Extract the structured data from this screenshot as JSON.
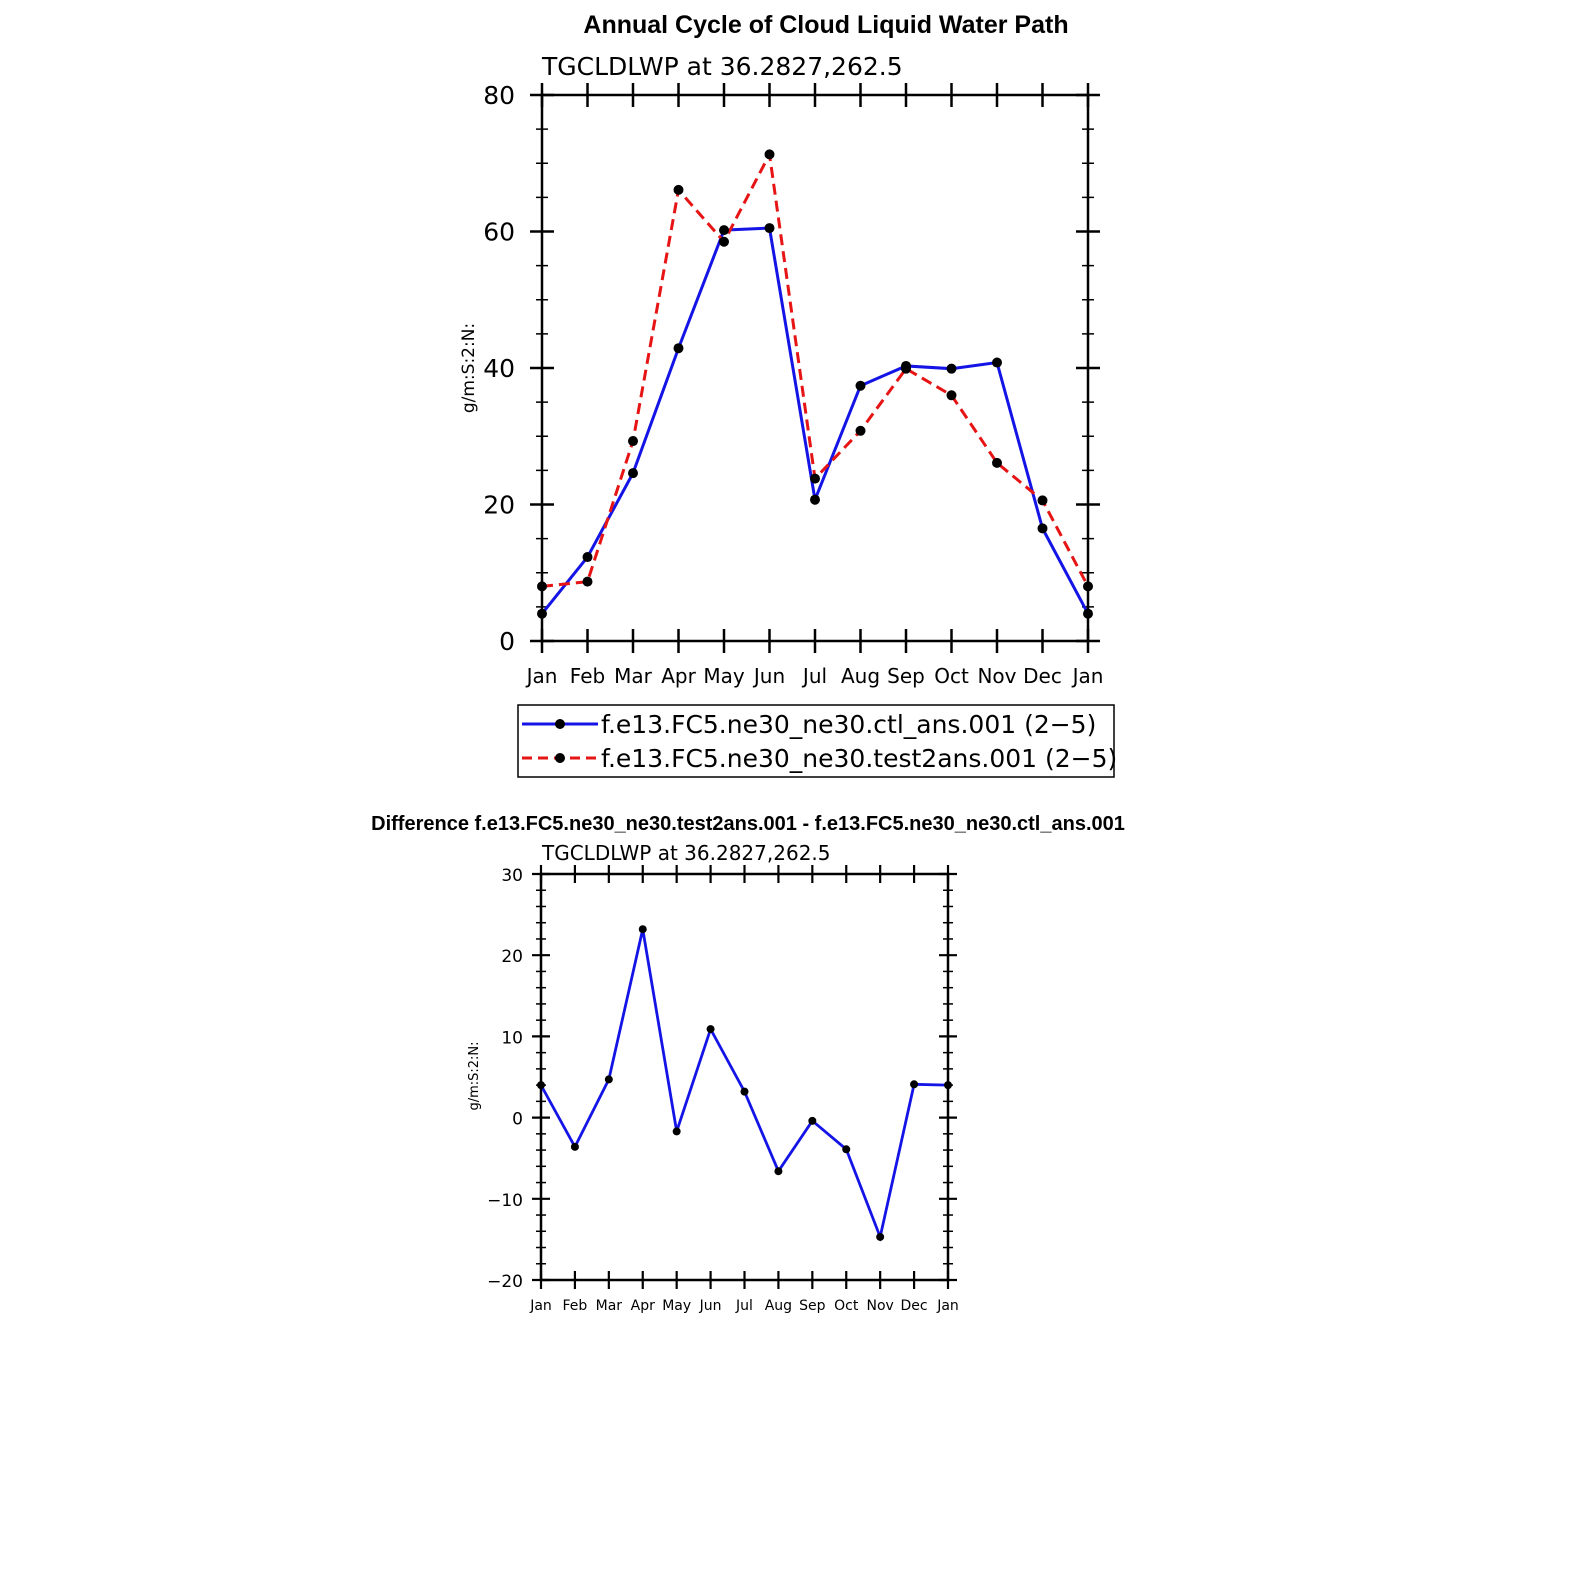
{
  "colors": {
    "ctl": "#1414e6",
    "test": "#e61414",
    "axis": "#000000",
    "marker": "#000000"
  },
  "chart_data": [
    {
      "type": "line",
      "title": "Annual Cycle of Cloud Liquid Water Path",
      "subtitle": "TGCLDLWP  at  36.2827,262.5",
      "xlabel": "",
      "ylabel": "g/m:S:2:N:",
      "categories": [
        "Jan",
        "Feb",
        "Mar",
        "Apr",
        "May",
        "Jun",
        "Jul",
        "Aug",
        "Sep",
        "Oct",
        "Nov",
        "Dec",
        "Jan"
      ],
      "ylim": [
        0,
        80
      ],
      "yticks": [
        "0",
        "20",
        "40",
        "60",
        "80"
      ],
      "series": [
        {
          "name": "f.e13.FC5.ne30_ne30.ctl_ans.001 (2−5)",
          "style": "solid",
          "color": "#1414e6",
          "values": [
            4.0,
            12.3,
            24.6,
            42.9,
            60.2,
            60.5,
            20.7,
            37.4,
            40.3,
            39.9,
            40.8,
            16.5,
            4.0
          ]
        },
        {
          "name": "f.e13.FC5.ne30_ne30.test2ans.001 (2−5)",
          "style": "dashed",
          "color": "#e61414",
          "values": [
            8.0,
            8.7,
            29.3,
            66.1,
            58.5,
            71.3,
            23.8,
            30.8,
            39.9,
            36.0,
            26.1,
            20.6,
            8.0
          ]
        }
      ],
      "legend_position": "below"
    },
    {
      "type": "line",
      "title": "Difference f.e13.FC5.ne30_ne30.test2ans.001 - f.e13.FC5.ne30_ne30.ctl_ans.001",
      "subtitle": "TGCLDLWP  at  36.2827,262.5",
      "xlabel": "",
      "ylabel": "g/m:S:2:N:",
      "categories": [
        "Jan",
        "Feb",
        "Mar",
        "Apr",
        "May",
        "Jun",
        "Jul",
        "Aug",
        "Sep",
        "Oct",
        "Nov",
        "Dec",
        "Jan"
      ],
      "ylim": [
        -20,
        30
      ],
      "yticks": [
        "−20",
        "−10",
        "0",
        "10",
        "20",
        "30"
      ],
      "series": [
        {
          "name": "difference",
          "style": "solid",
          "color": "#1414e6",
          "values": [
            4.0,
            -3.6,
            4.7,
            23.2,
            -1.7,
            10.9,
            3.2,
            -6.6,
            -0.4,
            -3.9,
            -14.7,
            4.1,
            4.0
          ]
        }
      ]
    }
  ]
}
